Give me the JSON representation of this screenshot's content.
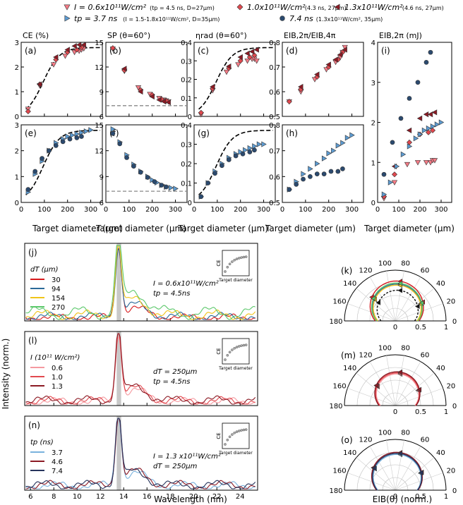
{
  "legend": {
    "top": [
      {
        "symbol": "tri-down",
        "color": "#f47b86",
        "label": "I = 0.6x10¹¹W/cm²",
        "sub": "(tp = 4.5 ns, D=27µm)"
      },
      {
        "symbol": "diamond",
        "color": "#e2494f",
        "label": "1.0x10¹¹W/cm²",
        "sub": "(4.3 ns, 27µm)"
      },
      {
        "symbol": "tri-left",
        "color": "#8c1a24",
        "label": "1.3x10¹¹W/cm²",
        "sub": "(4.6 ns, 27µm)"
      },
      {
        "symbol": "tri-right",
        "color": "#5d9bd1",
        "label": "tp = 3.7 ns",
        "sub": "(I = 1.5-1.8x10¹¹W/cm², D=35µm)"
      },
      {
        "symbol": "circle",
        "color": "#2b4a6f",
        "label": "7.4 ns",
        "sub": "(1.3x10¹¹W/cm², 35µm)"
      }
    ]
  },
  "chart_data": [
    {
      "id": "a",
      "type": "scatter",
      "col_title": "CE (%)",
      "ylim": [
        0,
        3
      ],
      "yticks": [
        0,
        1,
        2,
        3
      ],
      "xlim": [
        0,
        350
      ],
      "xticks": [
        0,
        100,
        200,
        300
      ],
      "fit": "sigmoid",
      "hline": null,
      "series": [
        {
          "sym": "tri-down",
          "color": "#f47b86",
          "x": [
            30,
            80,
            140,
            190,
            230,
            250,
            260,
            270
          ],
          "y": [
            0.3,
            1.25,
            2.1,
            2.45,
            2.6,
            2.65,
            2.7,
            2.75
          ]
        },
        {
          "sym": "diamond",
          "color": "#e2494f",
          "x": [
            30,
            80,
            150,
            200,
            240,
            260
          ],
          "y": [
            0.2,
            1.3,
            2.3,
            2.6,
            2.7,
            2.8
          ]
        },
        {
          "sym": "tri-left",
          "color": "#8c1a24",
          "x": [
            80,
            150,
            200,
            230,
            250,
            270
          ],
          "y": [
            1.3,
            2.4,
            2.7,
            2.85,
            2.9,
            2.9
          ]
        }
      ]
    },
    {
      "id": "b",
      "type": "scatter",
      "col_title": "SP (θ=60°)",
      "ylim": [
        6,
        15
      ],
      "yticks": [
        6,
        9,
        12,
        15
      ],
      "xlim": [
        0,
        350
      ],
      "xticks": [
        0,
        100,
        200,
        300
      ],
      "fit": null,
      "hline": 7.3,
      "series": [
        {
          "sym": "tri-down",
          "color": "#f47b86",
          "x": [
            30,
            80,
            140,
            190,
            230,
            250,
            260,
            270
          ],
          "y": [
            14.2,
            11.5,
            9.5,
            8.7,
            8.2,
            8.0,
            7.9,
            7.8
          ]
        },
        {
          "sym": "diamond",
          "color": "#e2494f",
          "x": [
            30,
            80,
            150,
            200,
            240,
            260
          ],
          "y": [
            14.3,
            11.6,
            9.2,
            8.6,
            8.1,
            7.9
          ]
        },
        {
          "sym": "tri-left",
          "color": "#8c1a24",
          "x": [
            80,
            150,
            200,
            230,
            250,
            270
          ],
          "y": [
            11.8,
            9.0,
            8.4,
            8.0,
            7.8,
            7.7
          ]
        }
      ]
    },
    {
      "id": "c",
      "type": "scatter",
      "col_title": "ηrad (θ=60°)",
      "ylim": [
        0,
        0.4
      ],
      "yticks": [
        0,
        0.1,
        0.2,
        0.3,
        0.4
      ],
      "xlim": [
        0,
        350
      ],
      "xticks": [
        0,
        100,
        200,
        300
      ],
      "fit": "sigmoid",
      "hline": null,
      "series": [
        {
          "sym": "tri-down",
          "color": "#f47b86",
          "x": [
            30,
            80,
            140,
            190,
            230,
            250,
            260,
            270
          ],
          "y": [
            0.01,
            0.14,
            0.24,
            0.28,
            0.3,
            0.31,
            0.31,
            0.3
          ]
        },
        {
          "sym": "diamond",
          "color": "#e2494f",
          "x": [
            30,
            80,
            150,
            200,
            240,
            260
          ],
          "y": [
            0.02,
            0.15,
            0.26,
            0.3,
            0.32,
            0.33
          ]
        },
        {
          "sym": "tri-left",
          "color": "#8c1a24",
          "x": [
            80,
            150,
            200,
            230,
            250,
            270
          ],
          "y": [
            0.16,
            0.27,
            0.32,
            0.34,
            0.35,
            0.36
          ]
        }
      ]
    },
    {
      "id": "d",
      "type": "scatter",
      "col_title": "EIB,2π/EIB,4π",
      "ylim": [
        0.5,
        0.8
      ],
      "yticks": [
        0.5,
        0.6,
        0.7,
        0.8
      ],
      "xlim": [
        0,
        350
      ],
      "xticks": [
        0,
        100,
        200,
        300
      ],
      "fit": null,
      "hline": null,
      "series": [
        {
          "sym": "tri-down",
          "color": "#f47b86",
          "x": [
            30,
            80,
            140,
            190,
            230,
            250,
            260,
            270
          ],
          "y": [
            0.56,
            0.6,
            0.65,
            0.69,
            0.72,
            0.74,
            0.76,
            0.78
          ]
        },
        {
          "sym": "diamond",
          "color": "#e2494f",
          "x": [
            30,
            80,
            150,
            200,
            240,
            260
          ],
          "y": [
            0.56,
            0.61,
            0.66,
            0.7,
            0.73,
            0.76
          ]
        },
        {
          "sym": "tri-left",
          "color": "#8c1a24",
          "x": [
            80,
            150,
            200,
            230,
            250,
            270
          ],
          "y": [
            0.62,
            0.67,
            0.71,
            0.73,
            0.75,
            0.77
          ]
        }
      ]
    },
    {
      "id": "e",
      "type": "scatter",
      "ylim": [
        0,
        3
      ],
      "yticks": [
        0,
        1,
        2,
        3
      ],
      "xlim": [
        0,
        350
      ],
      "xticks": [
        0,
        100,
        200,
        300
      ],
      "fit": "sigmoid",
      "hline": null,
      "series": [
        {
          "sym": "tri-right",
          "color": "#5d9bd1",
          "x": [
            30,
            60,
            90,
            120,
            150,
            180,
            200,
            220,
            240,
            260,
            280,
            300
          ],
          "y": [
            0.4,
            1.1,
            1.6,
            2.0,
            2.3,
            2.45,
            2.55,
            2.6,
            2.65,
            2.7,
            2.75,
            2.8
          ]
        },
        {
          "sym": "circle",
          "color": "#2b4a6f",
          "x": [
            30,
            60,
            90,
            120,
            150,
            180,
            210,
            240,
            260
          ],
          "y": [
            0.5,
            1.2,
            1.7,
            2.0,
            2.2,
            2.35,
            2.45,
            2.5,
            2.55
          ]
        }
      ]
    },
    {
      "id": "f",
      "type": "scatter",
      "ylim": [
        6,
        15
      ],
      "yticks": [
        6,
        9,
        12,
        15
      ],
      "xlim": [
        0,
        350
      ],
      "xticks": [
        0,
        100,
        200,
        300
      ],
      "fit": null,
      "hline": 7.3,
      "series": [
        {
          "sym": "tri-right",
          "color": "#5d9bd1",
          "x": [
            30,
            60,
            90,
            120,
            150,
            180,
            200,
            220,
            240,
            260,
            280,
            300
          ],
          "y": [
            14.5,
            13.0,
            11.5,
            10.4,
            9.6,
            9.0,
            8.6,
            8.3,
            8.0,
            7.8,
            7.7,
            7.6
          ]
        },
        {
          "sym": "circle",
          "color": "#2b4a6f",
          "x": [
            30,
            60,
            90,
            120,
            150,
            180,
            210,
            240,
            260
          ],
          "y": [
            14.0,
            12.8,
            11.2,
            10.2,
            9.5,
            8.9,
            8.4,
            8.0,
            7.8
          ]
        }
      ]
    },
    {
      "id": "g",
      "type": "scatter",
      "ylim": [
        0,
        0.4
      ],
      "yticks": [
        0,
        0.1,
        0.2,
        0.3,
        0.4
      ],
      "xlim": [
        0,
        350
      ],
      "xticks": [
        0,
        100,
        200,
        300
      ],
      "fit": "sigmoid",
      "hline": null,
      "series": [
        {
          "sym": "tri-right",
          "color": "#5d9bd1",
          "x": [
            30,
            60,
            90,
            120,
            150,
            180,
            200,
            220,
            240,
            260,
            280,
            300
          ],
          "y": [
            0.03,
            0.1,
            0.16,
            0.2,
            0.23,
            0.25,
            0.26,
            0.27,
            0.28,
            0.29,
            0.3,
            0.3
          ]
        },
        {
          "sym": "circle",
          "color": "#2b4a6f",
          "x": [
            30,
            60,
            90,
            120,
            150,
            180,
            210,
            240,
            260
          ],
          "y": [
            0.03,
            0.1,
            0.15,
            0.19,
            0.22,
            0.24,
            0.25,
            0.26,
            0.27
          ]
        }
      ]
    },
    {
      "id": "h",
      "type": "scatter",
      "ylim": [
        0.5,
        0.8
      ],
      "yticks": [
        0.5,
        0.6,
        0.7,
        0.8
      ],
      "xlim": [
        0,
        350
      ],
      "xticks": [
        0,
        100,
        200,
        300
      ],
      "fit": null,
      "hline": null,
      "series": [
        {
          "sym": "tri-right",
          "color": "#5d9bd1",
          "x": [
            30,
            60,
            90,
            120,
            150,
            180,
            200,
            220,
            240,
            260,
            280,
            300
          ],
          "y": [
            0.55,
            0.58,
            0.61,
            0.63,
            0.65,
            0.67,
            0.69,
            0.7,
            0.72,
            0.73,
            0.75,
            0.76
          ]
        },
        {
          "sym": "circle",
          "color": "#2b4a6f",
          "x": [
            30,
            60,
            90,
            120,
            150,
            180,
            210,
            240,
            260
          ],
          "y": [
            0.55,
            0.57,
            0.59,
            0.6,
            0.61,
            0.61,
            0.62,
            0.62,
            0.63
          ]
        }
      ]
    },
    {
      "id": "i",
      "type": "scatter",
      "col_title": "EIB,2π (mJ)",
      "ylim": [
        0,
        4
      ],
      "yticks": [
        0,
        1,
        2,
        3,
        4
      ],
      "xlim": [
        0,
        350
      ],
      "xticks": [
        0,
        100,
        200,
        300
      ],
      "fit": null,
      "hline": null,
      "series": [
        {
          "sym": "tri-down",
          "color": "#f47b86",
          "x": [
            30,
            80,
            140,
            190,
            230,
            250,
            260,
            270
          ],
          "y": [
            0.1,
            0.5,
            0.95,
            1.0,
            1.0,
            1.0,
            1.05,
            1.05
          ]
        },
        {
          "sym": "diamond",
          "color": "#e2494f",
          "x": [
            30,
            80,
            150,
            200,
            240,
            260
          ],
          "y": [
            0.15,
            0.7,
            1.5,
            1.7,
            1.75,
            1.8
          ]
        },
        {
          "sym": "tri-left",
          "color": "#8c1a24",
          "x": [
            80,
            150,
            200,
            230,
            250,
            270
          ],
          "y": [
            0.9,
            1.8,
            2.1,
            2.2,
            2.2,
            2.25
          ]
        },
        {
          "sym": "tri-right",
          "color": "#5d9bd1",
          "x": [
            30,
            60,
            90,
            120,
            150,
            180,
            200,
            220,
            240,
            260,
            280,
            300
          ],
          "y": [
            0.2,
            0.5,
            0.9,
            1.2,
            1.4,
            1.6,
            1.7,
            1.8,
            1.85,
            1.9,
            1.95,
            2.0
          ]
        },
        {
          "sym": "circle",
          "color": "#2b4a6f",
          "x": [
            30,
            70,
            110,
            150,
            190,
            230,
            250
          ],
          "y": [
            0.7,
            1.5,
            2.1,
            2.6,
            3.0,
            3.5,
            3.75
          ]
        }
      ]
    },
    {
      "id": "j",
      "type": "line",
      "xlim": [
        5.5,
        25.5
      ],
      "ylim": [
        0,
        1.05
      ],
      "legend_title": "dT (µm)",
      "annotation": [
        "I = 0.6x10¹¹W/cm²",
        "tp = 4.5ns"
      ],
      "series": [
        {
          "name": "30",
          "color": "#d7191c",
          "tail": 0.08,
          "peak": 0.95
        },
        {
          "name": "94",
          "color": "#2b6a99",
          "tail": 0.1,
          "peak": 0.9
        },
        {
          "name": "154",
          "color": "#f0c419",
          "tail": 0.13,
          "peak": 0.92
        },
        {
          "name": "270",
          "color": "#5cc86b",
          "tail": 0.18,
          "peak": 0.98
        }
      ]
    },
    {
      "id": "l",
      "type": "line",
      "xlim": [
        5.5,
        25.5
      ],
      "ylim": [
        0,
        1.05
      ],
      "legend_title": "I (10¹¹ W/cm²)",
      "annotation": [
        "dT = 250µm",
        "tp = 4.5ns"
      ],
      "series": [
        {
          "name": "0.6",
          "color": "#f59aa0",
          "tail": 0.1,
          "peak": 0.92
        },
        {
          "name": "1.0",
          "color": "#e2494f",
          "tail": 0.11,
          "peak": 0.95
        },
        {
          "name": "1.3",
          "color": "#8c1a24",
          "tail": 0.12,
          "peak": 0.98
        }
      ]
    },
    {
      "id": "n",
      "type": "line",
      "xlim": [
        5.5,
        25.5
      ],
      "ylim": [
        0,
        1.05
      ],
      "legend_title": "tp (ns)",
      "annotation": [
        "I = 1.3 x10¹¹W/cm²",
        "dT = 250µm"
      ],
      "series": [
        {
          "name": "3.7",
          "color": "#79b2dd",
          "tail": 0.11,
          "peak": 0.96
        },
        {
          "name": "4.6",
          "color": "#8c1a24",
          "tail": 0.12,
          "peak": 0.98
        },
        {
          "name": "7.4",
          "color": "#27345c",
          "tail": 0.12,
          "peak": 1.0
        }
      ]
    },
    {
      "id": "k",
      "type": "polar",
      "r_ticks": [
        0,
        0.5,
        1
      ],
      "angle_ticks": [
        0,
        20,
        40,
        60,
        80,
        100,
        120,
        140,
        160,
        180
      ],
      "curves": [
        {
          "color": "#d7191c",
          "r": 0.78
        },
        {
          "color": "#2b6a99",
          "r": 0.72
        },
        {
          "color": "#f0c419",
          "r": 0.7
        },
        {
          "color": "#5cc86b",
          "r": 0.74
        },
        {
          "color": "#111111",
          "r": 0.6,
          "dash": true
        }
      ]
    },
    {
      "id": "m",
      "type": "polar",
      "r_ticks": [
        0,
        0.5,
        1
      ],
      "angle_ticks": [
        0,
        20,
        40,
        60,
        80,
        100,
        120,
        140,
        160,
        180
      ],
      "curves": [
        {
          "color": "#f59aa0",
          "r": 0.62
        },
        {
          "color": "#e2494f",
          "r": 0.64
        },
        {
          "color": "#8c1a24",
          "r": 0.66
        }
      ]
    },
    {
      "id": "o",
      "type": "polar",
      "r_ticks": [
        0,
        0.5,
        1
      ],
      "angle_ticks": [
        0,
        20,
        40,
        60,
        80,
        100,
        120,
        140,
        160,
        180
      ],
      "curves": [
        {
          "color": "#79b2dd",
          "r": 0.7
        },
        {
          "color": "#8c1a24",
          "r": 0.74
        },
        {
          "color": "#27345c",
          "r": 0.72
        }
      ]
    }
  ],
  "labels": {
    "top_xlabel": "Target diameter (µm)",
    "spec_xlabel": "Wavelength (nm)",
    "spec_ylabel": "Intensity (norm.)",
    "polar_xlabel": "EIB(θ) (norm.)",
    "inset_ylabel": "CE",
    "inset_xlabel": "Target diameter",
    "spec_xticks": [
      "6",
      "8",
      "10",
      "12",
      "14",
      "16",
      "18",
      "20",
      "22",
      "24"
    ]
  }
}
